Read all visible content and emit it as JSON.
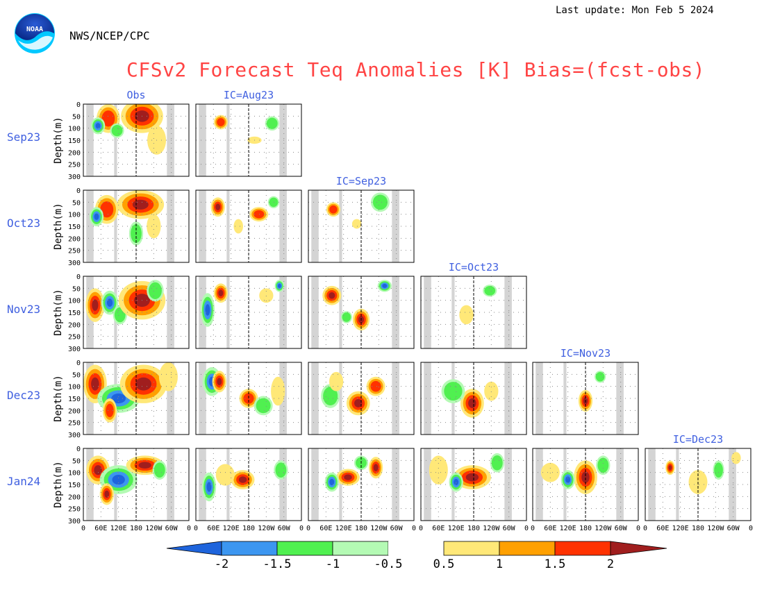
{
  "header": {
    "last_update": "Last update: Mon Feb 5 2024",
    "agency": "NWS/NCEP/CPC",
    "logo_text": "NOAA",
    "title": "CFSv2 Forecast Teq Anomalies [K] Bias=(fcst-obs)"
  },
  "chart_data": {
    "type": "heatmap",
    "title": "CFSv2 Forecast Teq Anomalies [K] Bias=(fcst-obs)",
    "ylabel": "Depth(m)",
    "y_ticks": [
      "0",
      "50",
      "100",
      "150",
      "200",
      "250",
      "300"
    ],
    "x_ticks": [
      "0",
      "60E",
      "120E",
      "180",
      "120W",
      "60W",
      "0"
    ],
    "ylim": [
      300,
      0
    ],
    "xlim": [
      0,
      360
    ],
    "column_titles": [
      "Obs",
      "IC=Aug23",
      "IC=Sep23",
      "IC=Oct23",
      "IC=Nov23",
      "IC=Dec23"
    ],
    "row_labels": [
      "Sep23",
      "Oct23",
      "Nov23",
      "Dec23",
      "Jan24"
    ],
    "colorbar": {
      "labels": [
        "-2",
        "-1.5",
        "-1",
        "-0.5",
        "0.5",
        "1",
        "1.5",
        "2"
      ],
      "colors": [
        "#1e64dc",
        "#3c96f0",
        "#50f050",
        "#b4fab4",
        "#ffffff",
        "#ffe878",
        "#ffa000",
        "#ff3200",
        "#a01e1e"
      ]
    },
    "panels": [
      {
        "row": 0,
        "col": 0,
        "blobs": [
          [
            85,
            60,
            25,
            60,
            "warm2"
          ],
          [
            200,
            50,
            45,
            70,
            "warm3"
          ],
          [
            50,
            90,
            15,
            35,
            "cold2"
          ],
          [
            115,
            110,
            15,
            30,
            "cold1"
          ],
          [
            250,
            150,
            20,
            60,
            "warm1"
          ]
        ]
      },
      {
        "row": 0,
        "col": 1,
        "blobs": [
          [
            85,
            75,
            15,
            30,
            "warm2"
          ],
          [
            260,
            80,
            15,
            30,
            "cold1"
          ],
          [
            200,
            150,
            15,
            15,
            "warm1"
          ]
        ]
      },
      {
        "row": 1,
        "col": 0,
        "blobs": [
          [
            80,
            80,
            25,
            60,
            "warm2"
          ],
          [
            45,
            110,
            15,
            40,
            "cold2"
          ],
          [
            195,
            60,
            50,
            60,
            "warm3"
          ],
          [
            180,
            180,
            15,
            50,
            "cold1"
          ],
          [
            240,
            150,
            15,
            50,
            "warm1"
          ]
        ]
      },
      {
        "row": 1,
        "col": 1,
        "blobs": [
          [
            75,
            70,
            15,
            40,
            "warm3"
          ],
          [
            215,
            100,
            20,
            30,
            "warm2"
          ],
          [
            265,
            50,
            12,
            25,
            "cold1"
          ],
          [
            145,
            150,
            10,
            30,
            "warm1"
          ]
        ]
      },
      {
        "row": 1,
        "col": 2,
        "blobs": [
          [
            85,
            80,
            15,
            30,
            "warm2"
          ],
          [
            245,
            50,
            20,
            40,
            "cold1"
          ],
          [
            165,
            140,
            10,
            20,
            "warm1"
          ]
        ]
      },
      {
        "row": 2,
        "col": 0,
        "blobs": [
          [
            40,
            120,
            20,
            70,
            "warm3"
          ],
          [
            90,
            110,
            18,
            50,
            "cold2"
          ],
          [
            125,
            160,
            15,
            40,
            "cold1"
          ],
          [
            200,
            100,
            50,
            80,
            "warm3"
          ],
          [
            245,
            60,
            18,
            45,
            "cold1"
          ]
        ]
      },
      {
        "row": 2,
        "col": 1,
        "blobs": [
          [
            40,
            140,
            15,
            70,
            "cold2"
          ],
          [
            85,
            70,
            15,
            40,
            "warm3"
          ],
          [
            240,
            80,
            15,
            30,
            "warm1"
          ],
          [
            285,
            40,
            10,
            25,
            "cold2"
          ]
        ]
      },
      {
        "row": 2,
        "col": 2,
        "blobs": [
          [
            80,
            80,
            20,
            40,
            "warm3"
          ],
          [
            180,
            180,
            18,
            45,
            "warm3"
          ],
          [
            260,
            40,
            15,
            25,
            "cold2"
          ],
          [
            130,
            170,
            12,
            25,
            "cold1"
          ]
        ]
      },
      {
        "row": 2,
        "col": 3,
        "blobs": [
          [
            155,
            160,
            15,
            40,
            "warm1"
          ],
          [
            235,
            60,
            15,
            25,
            "cold1"
          ]
        ]
      },
      {
        "row": 3,
        "col": 0,
        "blobs": [
          [
            40,
            90,
            25,
            80,
            "warm3"
          ],
          [
            120,
            150,
            45,
            60,
            "cold2"
          ],
          [
            205,
            90,
            50,
            80,
            "warm3"
          ],
          [
            290,
            60,
            20,
            60,
            "warm1"
          ],
          [
            90,
            200,
            15,
            50,
            "warm2"
          ]
        ]
      },
      {
        "row": 3,
        "col": 1,
        "blobs": [
          [
            55,
            80,
            20,
            60,
            "cold2"
          ],
          [
            80,
            80,
            15,
            45,
            "warm3"
          ],
          [
            180,
            150,
            20,
            40,
            "warm2"
          ],
          [
            230,
            180,
            20,
            40,
            "cold1"
          ],
          [
            280,
            120,
            15,
            60,
            "warm1"
          ]
        ]
      },
      {
        "row": 3,
        "col": 2,
        "blobs": [
          [
            170,
            170,
            25,
            50,
            "warm3"
          ],
          [
            230,
            100,
            20,
            40,
            "warm2"
          ],
          [
            75,
            140,
            20,
            50,
            "cold1"
          ],
          [
            95,
            80,
            15,
            40,
            "warm1"
          ]
        ]
      },
      {
        "row": 3,
        "col": 3,
        "blobs": [
          [
            175,
            170,
            25,
            60,
            "warm3"
          ],
          [
            110,
            120,
            25,
            50,
            "cold1"
          ],
          [
            240,
            120,
            15,
            40,
            "warm1"
          ]
        ]
      },
      {
        "row": 3,
        "col": 4,
        "blobs": [
          [
            180,
            160,
            15,
            45,
            "warm3"
          ],
          [
            230,
            60,
            12,
            25,
            "cold1"
          ]
        ]
      },
      {
        "row": 4,
        "col": 0,
        "blobs": [
          [
            50,
            90,
            25,
            60,
            "warm3"
          ],
          [
            120,
            130,
            40,
            60,
            "cold2"
          ],
          [
            210,
            70,
            40,
            40,
            "warm3"
          ],
          [
            80,
            190,
            15,
            45,
            "warm3"
          ],
          [
            260,
            90,
            15,
            40,
            "cold1"
          ]
        ]
      },
      {
        "row": 4,
        "col": 1,
        "blobs": [
          [
            45,
            160,
            15,
            60,
            "cold2"
          ],
          [
            160,
            130,
            25,
            40,
            "warm3"
          ],
          [
            100,
            110,
            20,
            45,
            "warm1"
          ],
          [
            290,
            90,
            15,
            40,
            "cold1"
          ]
        ]
      },
      {
        "row": 4,
        "col": 2,
        "blobs": [
          [
            135,
            120,
            25,
            35,
            "warm3"
          ],
          [
            80,
            140,
            15,
            40,
            "cold2"
          ],
          [
            230,
            80,
            15,
            45,
            "warm3"
          ],
          [
            180,
            60,
            15,
            30,
            "cold1"
          ]
        ]
      },
      {
        "row": 4,
        "col": 3,
        "blobs": [
          [
            175,
            120,
            40,
            50,
            "warm3"
          ],
          [
            120,
            140,
            15,
            40,
            "cold2"
          ],
          [
            60,
            90,
            20,
            60,
            "warm1"
          ],
          [
            260,
            60,
            15,
            40,
            "cold1"
          ]
        ]
      },
      {
        "row": 4,
        "col": 4,
        "blobs": [
          [
            180,
            120,
            25,
            70,
            "warm3"
          ],
          [
            120,
            130,
            15,
            40,
            "cold2"
          ],
          [
            60,
            100,
            20,
            40,
            "warm1"
          ],
          [
            240,
            70,
            15,
            40,
            "cold1"
          ]
        ]
      },
      {
        "row": 4,
        "col": 5,
        "blobs": [
          [
            85,
            80,
            10,
            30,
            "warm3"
          ],
          [
            180,
            140,
            20,
            50,
            "warm1"
          ],
          [
            250,
            90,
            12,
            40,
            "cold1"
          ],
          [
            310,
            40,
            10,
            25,
            "warm1"
          ]
        ]
      }
    ],
    "grey_bands": [
      [
        10,
        35
      ],
      [
        105,
        115
      ],
      [
        285,
        310
      ]
    ]
  }
}
